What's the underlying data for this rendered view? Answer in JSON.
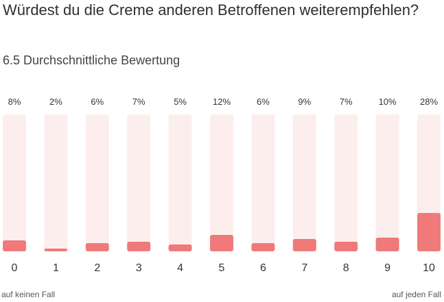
{
  "question": "Würdest du die Creme anderen Betroffenen weiterempfehlen?",
  "average_label": "6.5 Durchschnittliche Bewertung",
  "scale": {
    "low_label": "auf keinen Fall",
    "high_label": "auf jeden Fall"
  },
  "colors": {
    "bar": "#f07a7a",
    "track": "#fdeeee",
    "text": "#333333"
  },
  "chart_data": {
    "type": "bar",
    "categories": [
      "0",
      "1",
      "2",
      "3",
      "4",
      "5",
      "6",
      "7",
      "8",
      "9",
      "10"
    ],
    "values": [
      8,
      2,
      6,
      7,
      5,
      12,
      6,
      9,
      7,
      10,
      28
    ],
    "value_labels": [
      "8%",
      "2%",
      "6%",
      "7%",
      "5%",
      "12%",
      "6%",
      "9%",
      "7%",
      "10%",
      "28%"
    ],
    "unit": "%",
    "ylim": [
      0,
      100
    ],
    "grid": false
  }
}
